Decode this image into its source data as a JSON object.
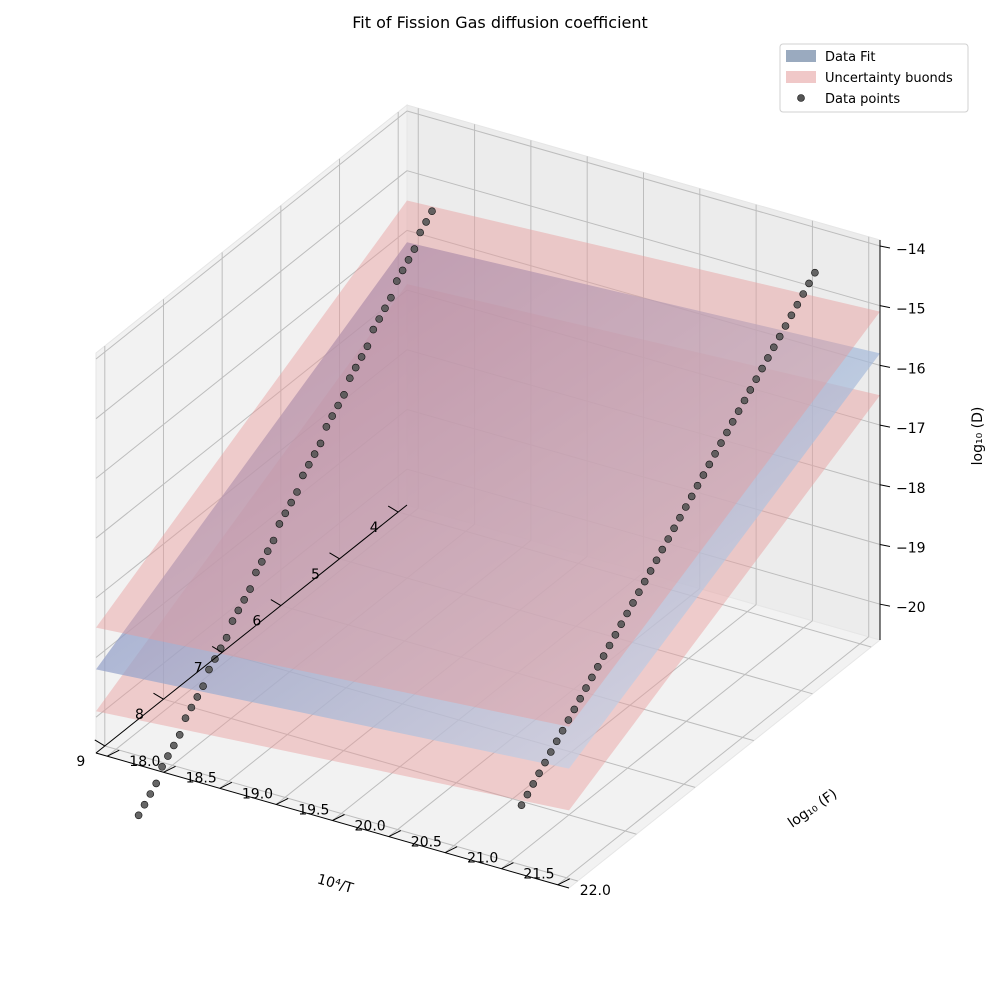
{
  "chart_data": {
    "type": "surface3d-scatter",
    "title": "Fit of Fission Gas diffusion coefficient",
    "xlabel": "10⁴/T",
    "ylabel": "log₁₀ (F)",
    "zlabel": "log₁₀ (D)",
    "xlim": [
      3.85,
      9.15
    ],
    "ylim": [
      17.9,
      22.1
    ],
    "zlim": [
      -20.6,
      -13.9
    ],
    "x_ticks": [
      "4",
      "5",
      "6",
      "7",
      "8",
      "9"
    ],
    "y_ticks": [
      "18.0",
      "18.5",
      "19.0",
      "19.5",
      "20.0",
      "20.5",
      "21.0",
      "21.5",
      "22.0"
    ],
    "z_ticks": [
      "−20",
      "−19",
      "−18",
      "−17",
      "−16",
      "−15",
      "−14"
    ],
    "x_tick_values": [
      4,
      5,
      6,
      7,
      8,
      9
    ],
    "y_tick_values": [
      18.0,
      18.5,
      19.0,
      19.5,
      20.0,
      20.5,
      21.0,
      21.5,
      22.0
    ],
    "z_tick_values": [
      -20,
      -19,
      -18,
      -17,
      -16,
      -15,
      -14
    ],
    "grid": true,
    "legend_position": "top-right",
    "legend": [
      {
        "label": "Data Fit",
        "color": "#9aaabf",
        "kind": "patch"
      },
      {
        "label": "Uncertainty buonds",
        "color": "#f0c8c8",
        "kind": "patch"
      },
      {
        "label": "Data points",
        "color": "#555555",
        "kind": "marker"
      }
    ],
    "fit_plane": {
      "range_x": [
        3.85,
        9.15
      ],
      "range_y": [
        17.9,
        22.1
      ],
      "corner_z": [
        -16.2,
        -15.8,
        -18.6,
        -19.2
      ]
    },
    "upper_plane": {
      "range_x": [
        3.85,
        9.15
      ],
      "range_y": [
        17.9,
        22.1
      ],
      "corner_z": [
        -15.5,
        -15.1,
        -17.9,
        -18.5
      ]
    },
    "lower_plane": {
      "range_x": [
        3.85,
        9.15
      ],
      "range_y": [
        17.9,
        22.1
      ],
      "corner_z": [
        -16.9,
        -16.5,
        -19.3,
        -19.9
      ]
    },
    "series": [
      {
        "name": "Data points",
        "x": [
          4.0,
          4.1,
          4.2,
          4.3,
          4.4,
          4.5,
          4.6,
          4.7,
          4.8,
          4.9,
          5.0,
          5.1,
          5.2,
          5.3,
          5.4,
          5.5,
          5.6,
          5.7,
          5.8,
          5.9,
          6.0,
          6.1,
          6.2,
          6.3,
          6.4,
          6.5,
          6.6,
          6.7,
          6.8,
          6.9,
          7.0,
          7.1,
          7.2,
          7.3,
          7.4,
          7.5,
          7.6,
          7.7,
          7.8,
          7.9,
          8.0,
          8.1,
          8.2,
          8.3,
          8.4,
          8.5,
          8.6,
          8.7,
          8.8,
          8.9,
          9.0,
          4.0,
          4.1,
          4.2,
          4.3,
          4.4,
          4.5,
          4.6,
          4.7,
          4.8,
          4.9,
          5.0,
          5.1,
          5.2,
          5.3,
          5.4,
          5.5,
          5.6,
          5.7,
          5.8,
          5.9,
          6.0,
          6.1,
          6.2,
          6.3,
          6.4,
          6.5,
          6.6,
          6.7,
          6.8,
          6.9,
          7.0,
          7.1,
          7.2,
          7.3,
          7.4,
          7.5,
          7.6,
          7.7,
          7.8,
          7.9,
          8.0,
          8.1,
          8.2,
          8.3,
          8.4,
          8.5,
          8.6,
          8.7,
          8.8,
          8.9,
          9.0
        ],
        "y": [
          18.2,
          18.2,
          18.2,
          18.2,
          18.2,
          18.2,
          18.2,
          18.2,
          18.2,
          18.2,
          18.2,
          18.2,
          18.2,
          18.2,
          18.2,
          18.2,
          18.2,
          18.2,
          18.2,
          18.2,
          18.2,
          18.2,
          18.2,
          18.2,
          18.2,
          18.2,
          18.2,
          18.2,
          18.2,
          18.2,
          18.2,
          18.2,
          18.2,
          18.2,
          18.2,
          18.2,
          18.2,
          18.2,
          18.2,
          18.2,
          18.2,
          18.2,
          18.2,
          18.2,
          18.2,
          18.2,
          18.2,
          18.2,
          18.2,
          18.2,
          18.2,
          21.6,
          21.6,
          21.6,
          21.6,
          21.6,
          21.6,
          21.6,
          21.6,
          21.6,
          21.6,
          21.6,
          21.6,
          21.6,
          21.6,
          21.6,
          21.6,
          21.6,
          21.6,
          21.6,
          21.6,
          21.6,
          21.6,
          21.6,
          21.6,
          21.6,
          21.6,
          21.6,
          21.6,
          21.6,
          21.6,
          21.6,
          21.6,
          21.6,
          21.6,
          21.6,
          21.6,
          21.6,
          21.6,
          21.6,
          21.6,
          21.6,
          21.6,
          21.6,
          21.6,
          21.6,
          21.6,
          21.6,
          21.6,
          21.6,
          21.6,
          21.6
        ],
        "z": [
          -15.4,
          -15.5,
          -15.6,
          -15.8,
          -15.9,
          -16.0,
          -16.1,
          -16.3,
          -16.4,
          -16.5,
          -16.6,
          -16.8,
          -16.9,
          -17.0,
          -17.1,
          -17.3,
          -17.4,
          -17.5,
          -17.6,
          -17.8,
          -17.9,
          -18.0,
          -18.1,
          -18.3,
          -18.4,
          -18.5,
          -18.6,
          -18.8,
          -18.9,
          -19.0,
          -19.1,
          -19.3,
          -19.4,
          -19.5,
          -19.6,
          -19.8,
          -19.9,
          -20.0,
          -20.1,
          -20.3,
          -20.4,
          -20.5,
          -20.6,
          -20.8,
          -20.9,
          -21.0,
          -21.1,
          -21.3,
          -21.4,
          -21.5,
          -21.6,
          -14.6,
          -14.7,
          -14.8,
          -14.9,
          -15.0,
          -15.1,
          -15.2,
          -15.3,
          -15.4,
          -15.5,
          -15.6,
          -15.7,
          -15.8,
          -15.9,
          -16.0,
          -16.1,
          -16.2,
          -16.3,
          -16.4,
          -16.5,
          -16.6,
          -16.7,
          -16.8,
          -16.9,
          -17.0,
          -17.1,
          -17.2,
          -17.3,
          -17.4,
          -17.5,
          -17.6,
          -17.7,
          -17.8,
          -17.9,
          -18.0,
          -18.1,
          -18.2,
          -18.3,
          -18.4,
          -18.5,
          -18.6,
          -18.7,
          -18.8,
          -18.9,
          -19.0,
          -19.1,
          -19.2,
          -19.3,
          -19.4,
          -19.5,
          -19.6
        ]
      }
    ]
  }
}
